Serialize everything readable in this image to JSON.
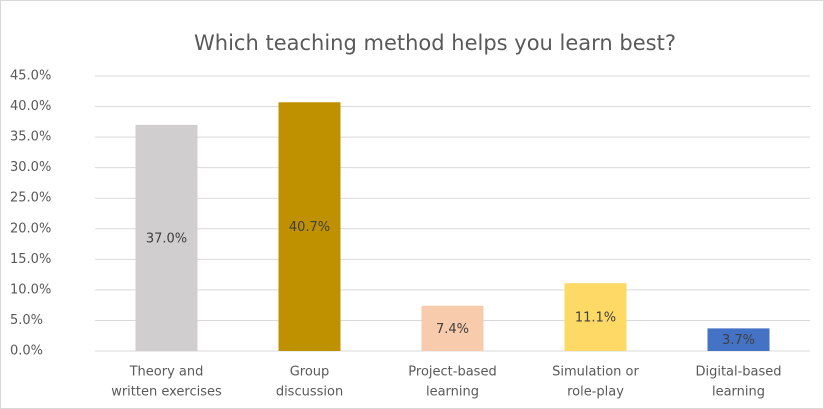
{
  "chart_data": {
    "type": "bar",
    "title": "Which teaching method helps you learn best?",
    "categories": [
      [
        "Theory and",
        "written exercises"
      ],
      [
        "Group",
        "discussion"
      ],
      [
        "Project-based",
        "learning"
      ],
      [
        "Simulation or",
        "role-play"
      ],
      [
        "Digital-based",
        "learning"
      ]
    ],
    "values": [
      37.0,
      40.7,
      7.4,
      11.1,
      3.7
    ],
    "value_labels": [
      "37.0%",
      "40.7%",
      "7.4%",
      "11.1%",
      "3.7%"
    ],
    "colors": [
      "#d0cece",
      "#bf9000",
      "#f8cbad",
      "#ffd966",
      "#4472c4"
    ],
    "ylim": [
      0,
      45
    ],
    "yticks": [
      {
        "value": 0,
        "label": "0.0%"
      },
      {
        "value": 5,
        "label": "5.0%"
      },
      {
        "value": 10,
        "label": "10.0%"
      },
      {
        "value": 15,
        "label": "15.0%"
      },
      {
        "value": 20,
        "label": "20.0%"
      },
      {
        "value": 25,
        "label": "25.0%"
      },
      {
        "value": 30,
        "label": "30.0%"
      },
      {
        "value": 35,
        "label": "35.0%"
      },
      {
        "value": 40,
        "label": "40.0%"
      },
      {
        "value": 45,
        "label": "45.0%"
      }
    ],
    "grid": true
  }
}
